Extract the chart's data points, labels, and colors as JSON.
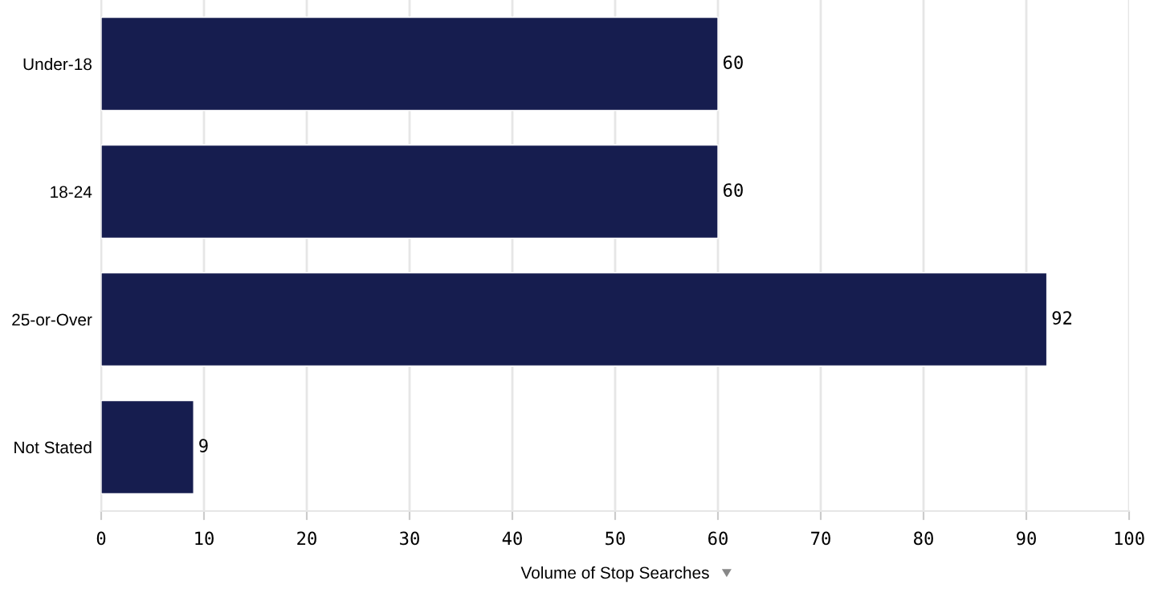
{
  "chart_data": {
    "type": "bar",
    "orientation": "horizontal",
    "xlabel": "Volume of Stop Searches",
    "categories": [
      "Under-18",
      "18-24",
      "25-or-Over",
      "Not Stated"
    ],
    "values": [
      60,
      60,
      92,
      9
    ],
    "color": "#161d4f",
    "data_labels": true,
    "xlim": [
      0,
      100
    ],
    "xticks": [
      0,
      10,
      20,
      30,
      40,
      50,
      60,
      70,
      80,
      90,
      100
    ],
    "grid": "x",
    "legend": false
  }
}
